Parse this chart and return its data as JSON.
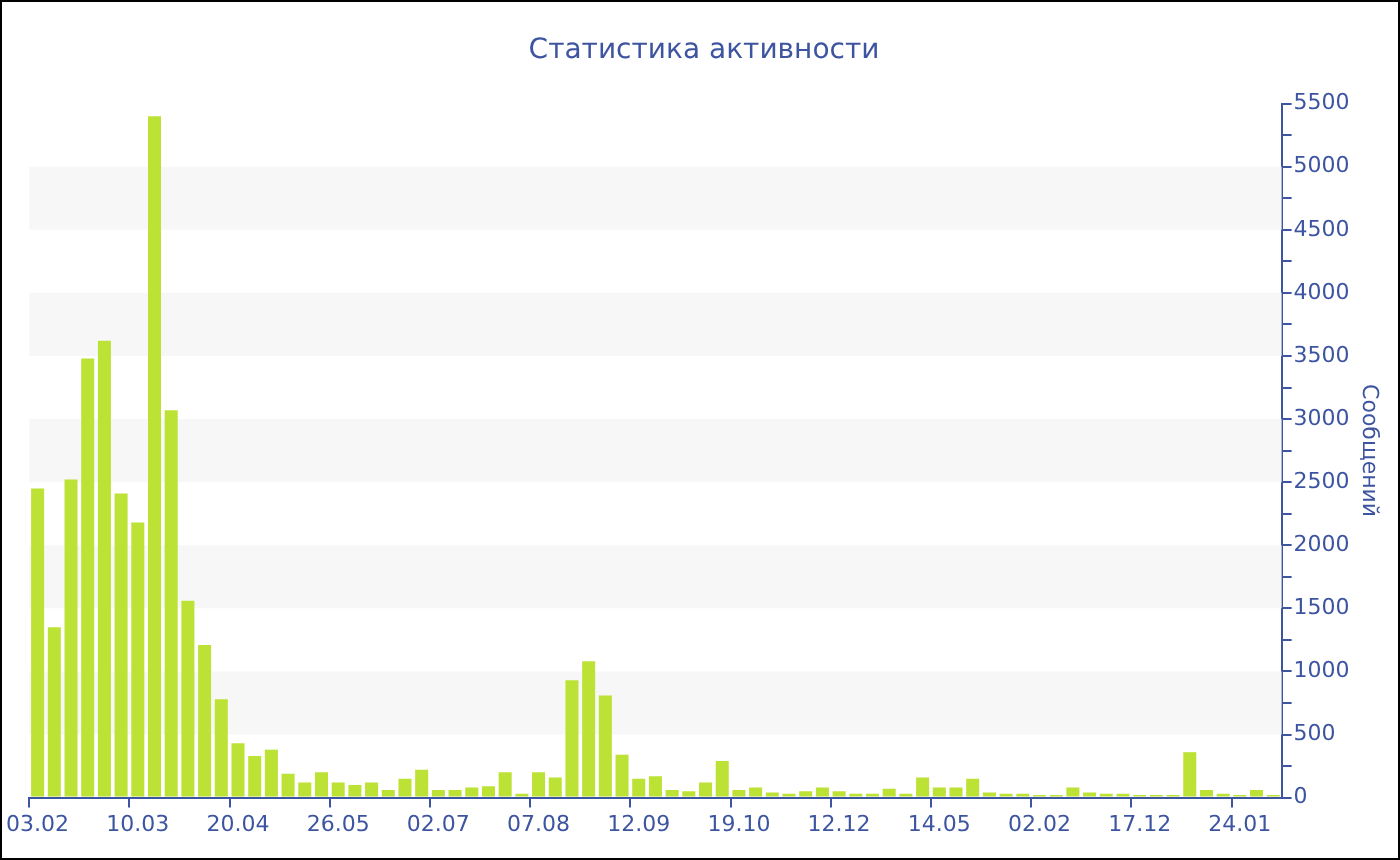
{
  "chart_data": {
    "type": "bar",
    "title": "Статистика активности",
    "ylabel": "Сообщений",
    "categories": [
      "03.02",
      null,
      null,
      null,
      null,
      null,
      "10.03",
      null,
      null,
      null,
      null,
      null,
      "20.04",
      null,
      null,
      null,
      null,
      null,
      "26.05",
      null,
      null,
      null,
      null,
      null,
      "02.07",
      null,
      null,
      null,
      null,
      null,
      "07.08",
      null,
      null,
      null,
      null,
      null,
      "12.09",
      null,
      null,
      null,
      null,
      null,
      "19.10",
      null,
      null,
      null,
      null,
      null,
      "12.12",
      null,
      null,
      null,
      null,
      null,
      "14.05",
      null,
      null,
      null,
      null,
      null,
      "02.02",
      null,
      null,
      null,
      null,
      null,
      "17.12",
      null,
      null,
      null,
      null,
      null,
      "24.01",
      null,
      null
    ],
    "values": [
      2450,
      1350,
      2520,
      3480,
      3620,
      2410,
      2180,
      5400,
      3070,
      1560,
      1210,
      780,
      430,
      330,
      380,
      190,
      120,
      200,
      120,
      100,
      120,
      60,
      150,
      220,
      60,
      60,
      80,
      90,
      200,
      30,
      200,
      160,
      930,
      1080,
      810,
      340,
      150,
      170,
      60,
      50,
      120,
      290,
      60,
      80,
      40,
      30,
      50,
      80,
      50,
      30,
      30,
      70,
      30,
      160,
      80,
      80,
      150,
      40,
      30,
      30,
      20,
      20,
      80,
      40,
      30,
      30,
      20,
      20,
      20,
      360,
      60,
      30,
      20,
      60,
      20
    ],
    "color": "#bce235",
    "ylim": [
      0,
      5500
    ],
    "yticks": [
      0,
      {
        "value": 250,
        "label": null
      },
      500,
      {
        "value": 750,
        "label": null
      },
      1000,
      {
        "value": 1250,
        "label": null
      },
      1500,
      {
        "value": 1750,
        "label": null
      },
      2000,
      {
        "value": 2250,
        "label": null
      },
      2500,
      {
        "value": 2750,
        "label": null
      },
      3000,
      {
        "value": 3250,
        "label": null
      },
      3500,
      {
        "value": 3750,
        "label": null
      },
      4000,
      {
        "value": 4250,
        "label": null
      },
      4500,
      {
        "value": 4750,
        "label": null
      },
      5000,
      {
        "value": 5250,
        "label": null
      },
      5500
    ],
    "bands": [
      {
        "axis": "y",
        "from": 500,
        "to": 1000,
        "color": "#f7f7f7"
      },
      {
        "axis": "y",
        "from": 1500,
        "to": 2000,
        "color": "#f7f7f7"
      },
      {
        "axis": "y",
        "from": 2500,
        "to": 3000,
        "color": "#f7f7f7"
      },
      {
        "axis": "y",
        "from": 3500,
        "to": 4000,
        "color": "#f7f7f7"
      },
      {
        "axis": "y",
        "from": 4500,
        "to": 5000,
        "color": "#f7f7f7"
      }
    ]
  }
}
